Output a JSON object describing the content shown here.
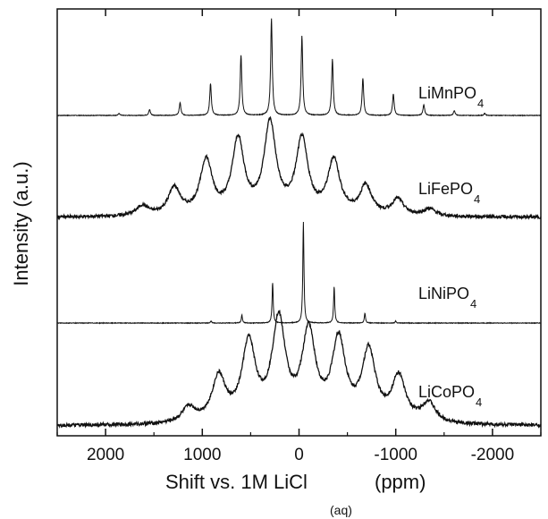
{
  "chart_data": {
    "type": "line",
    "title": "",
    "xlabel": "Shift vs. 1M LiCl",
    "xlabel_sub": "(aq)",
    "xlabel_unit": "(ppm)",
    "ylabel": "Intensity (a.u.)",
    "xlim": [
      2500,
      -2500
    ],
    "x_reversed": true,
    "x_ticks": [
      2000,
      1000,
      0,
      -1000,
      -2000
    ],
    "x_tick_labels": [
      "2000",
      "1000",
      "0",
      "-1000",
      "-2000"
    ],
    "y_ticks_shown": false,
    "grid": false,
    "legend": "none",
    "isotropic_marker": "*",
    "series": [
      {
        "name": "LiMnPO",
        "name_sub": "4",
        "isotropic_shift": -30,
        "spacing": 315,
        "peak_width": 10,
        "sidebands": [
          {
            "order": -6,
            "rel_intensity": 0.02
          },
          {
            "order": -5,
            "rel_intensity": 0.05
          },
          {
            "order": -4,
            "rel_intensity": 0.11
          },
          {
            "order": -3,
            "rel_intensity": 0.22
          },
          {
            "order": -2,
            "rel_intensity": 0.38
          },
          {
            "order": -1,
            "rel_intensity": 0.58
          },
          {
            "order": 0,
            "rel_intensity": 0.82
          },
          {
            "order": 1,
            "rel_intensity": 1.0
          },
          {
            "order": 2,
            "rel_intensity": 0.62
          },
          {
            "order": 3,
            "rel_intensity": 0.33
          },
          {
            "order": 4,
            "rel_intensity": 0.13
          },
          {
            "order": 5,
            "rel_intensity": 0.06
          },
          {
            "order": 6,
            "rel_intensity": 0.02
          }
        ]
      },
      {
        "name": "LiFePO",
        "name_sub": "4",
        "isotropic_shift": -30,
        "spacing": 330,
        "peak_width": 75,
        "sidebands": [
          {
            "order": -4,
            "rel_intensity": 0.08
          },
          {
            "order": -3,
            "rel_intensity": 0.18
          },
          {
            "order": -2,
            "rel_intensity": 0.32
          },
          {
            "order": -1,
            "rel_intensity": 0.6
          },
          {
            "order": 0,
            "rel_intensity": 0.82
          },
          {
            "order": 1,
            "rel_intensity": 1.0
          },
          {
            "order": 2,
            "rel_intensity": 0.82
          },
          {
            "order": 3,
            "rel_intensity": 0.6
          },
          {
            "order": 4,
            "rel_intensity": 0.3
          },
          {
            "order": 5,
            "rel_intensity": 0.11
          }
        ]
      },
      {
        "name": "LiNiPO",
        "name_sub": "4",
        "isotropic_shift": -45,
        "spacing": 318,
        "peak_width": 7,
        "sidebands": [
          {
            "order": -3,
            "rel_intensity": 0.02
          },
          {
            "order": -2,
            "rel_intensity": 0.1
          },
          {
            "order": -1,
            "rel_intensity": 0.36
          },
          {
            "order": 0,
            "rel_intensity": 1.0
          },
          {
            "order": 1,
            "rel_intensity": 0.4
          },
          {
            "order": 2,
            "rel_intensity": 0.08
          },
          {
            "order": 3,
            "rel_intensity": 0.02
          }
        ]
      },
      {
        "name": "LiCoPO",
        "name_sub": "4",
        "isotropic_shift": -100,
        "spacing": 310,
        "peak_width": 85,
        "sidebands": [
          {
            "order": -4,
            "rel_intensity": 0.2
          },
          {
            "order": -3,
            "rel_intensity": 0.45
          },
          {
            "order": -2,
            "rel_intensity": 0.7
          },
          {
            "order": -1,
            "rel_intensity": 0.8
          },
          {
            "order": 0,
            "rel_intensity": 0.88
          },
          {
            "order": 1,
            "rel_intensity": 1.0
          },
          {
            "order": 2,
            "rel_intensity": 0.78
          },
          {
            "order": 3,
            "rel_intensity": 0.45
          },
          {
            "order": 4,
            "rel_intensity": 0.15
          }
        ]
      }
    ]
  }
}
